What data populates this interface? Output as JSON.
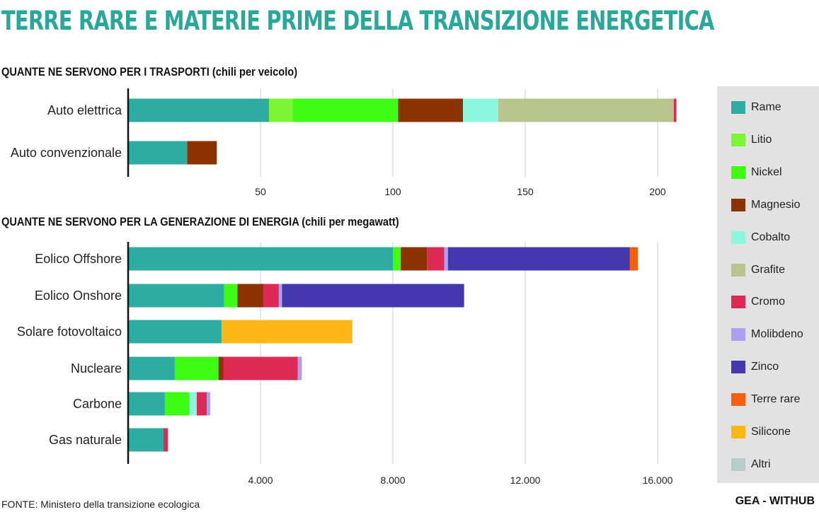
{
  "title": "TERRE RARE E MATERIE PRIME DELLA TRANSIZIONE ENERGETICA",
  "source": "FONTE: Ministero della transizione ecologica",
  "brand": "GEA - WITHUB",
  "legend": [
    {
      "name": "Rame",
      "color": "#2eaca2"
    },
    {
      "name": "Litio",
      "color": "#7cf534"
    },
    {
      "name": "Nickel",
      "color": "#3cfd12"
    },
    {
      "name": "Magnesio",
      "color": "#8b3300"
    },
    {
      "name": "Cobalto",
      "color": "#8cf7df"
    },
    {
      "name": "Grafite",
      "color": "#b7c58c"
    },
    {
      "name": "Cromo",
      "color": "#dc2a55"
    },
    {
      "name": "Molibdeno",
      "color": "#ad9ff0"
    },
    {
      "name": "Zinco",
      "color": "#4337ae"
    },
    {
      "name": "Terre rare",
      "color": "#f85e0c"
    },
    {
      "name": "Silicone",
      "color": "#fdb714"
    },
    {
      "name": "Altri",
      "color": "#b7cccb"
    }
  ],
  "chart_data": [
    {
      "type": "bar",
      "orientation": "horizontal",
      "stacked": true,
      "title": "QUANTE NE SERVONO PER I TRASPORTI (chili per veicolo)",
      "categories": [
        "Auto elettrica",
        "Auto convenzionale"
      ],
      "xlim": [
        0,
        210
      ],
      "xticks": [
        50,
        100,
        150,
        200
      ],
      "xtick_labels": [
        "50",
        "100",
        "150",
        "200"
      ],
      "grid": true,
      "series": [
        {
          "name": "Rame",
          "values": [
            53.2,
            22.3
          ]
        },
        {
          "name": "Litio",
          "values": [
            8.9,
            0
          ]
        },
        {
          "name": "Nickel",
          "values": [
            39.9,
            0
          ]
        },
        {
          "name": "Magnesio",
          "values": [
            24.5,
            11.2
          ]
        },
        {
          "name": "Cobalto",
          "values": [
            13.3,
            0
          ]
        },
        {
          "name": "Grafite",
          "values": [
            66.3,
            0
          ]
        },
        {
          "name": "Cromo",
          "values": [
            1,
            0
          ]
        }
      ]
    },
    {
      "type": "bar",
      "orientation": "horizontal",
      "stacked": true,
      "title": "QUANTE NE SERVONO PER LA GENERAZIONE DI ENERGIA (chili per megawatt)",
      "categories": [
        "Eolico Offshore",
        "Eolico Onshore",
        "Solare fotovoltaico",
        "Nucleare",
        "Carbone",
        "Gas naturale"
      ],
      "xlim": [
        0,
        16800
      ],
      "xticks": [
        4000,
        8000,
        12000,
        16000
      ],
      "xtick_labels": [
        "4.000",
        "8.000",
        "12.000",
        "16.000"
      ],
      "grid": true,
      "series": [
        {
          "name": "Rame",
          "values": [
            8000,
            2900,
            2822,
            1410,
            1110,
            1070
          ]
        },
        {
          "name": "Nickel",
          "values": [
            240,
            404,
            0,
            1320,
            730,
            0
          ]
        },
        {
          "name": "Magnesio",
          "values": [
            790,
            780,
            0,
            148,
            0,
            0
          ]
        },
        {
          "name": "Cobalto",
          "values": [
            0,
            0,
            0,
            0,
            235,
            0
          ]
        },
        {
          "name": "Cromo",
          "values": [
            525,
            470,
            0,
            2250,
            300,
            130
          ]
        },
        {
          "name": "Molibdeno",
          "values": [
            109,
            99,
            0,
            120,
            105,
            0
          ]
        },
        {
          "name": "Zinco",
          "values": [
            5500,
            5500,
            0,
            0,
            0,
            0
          ]
        },
        {
          "name": "Terre rare",
          "values": [
            239,
            0,
            0,
            0,
            0,
            0
          ]
        },
        {
          "name": "Silicone",
          "values": [
            0,
            0,
            3955,
            0,
            0,
            0
          ]
        }
      ]
    }
  ]
}
